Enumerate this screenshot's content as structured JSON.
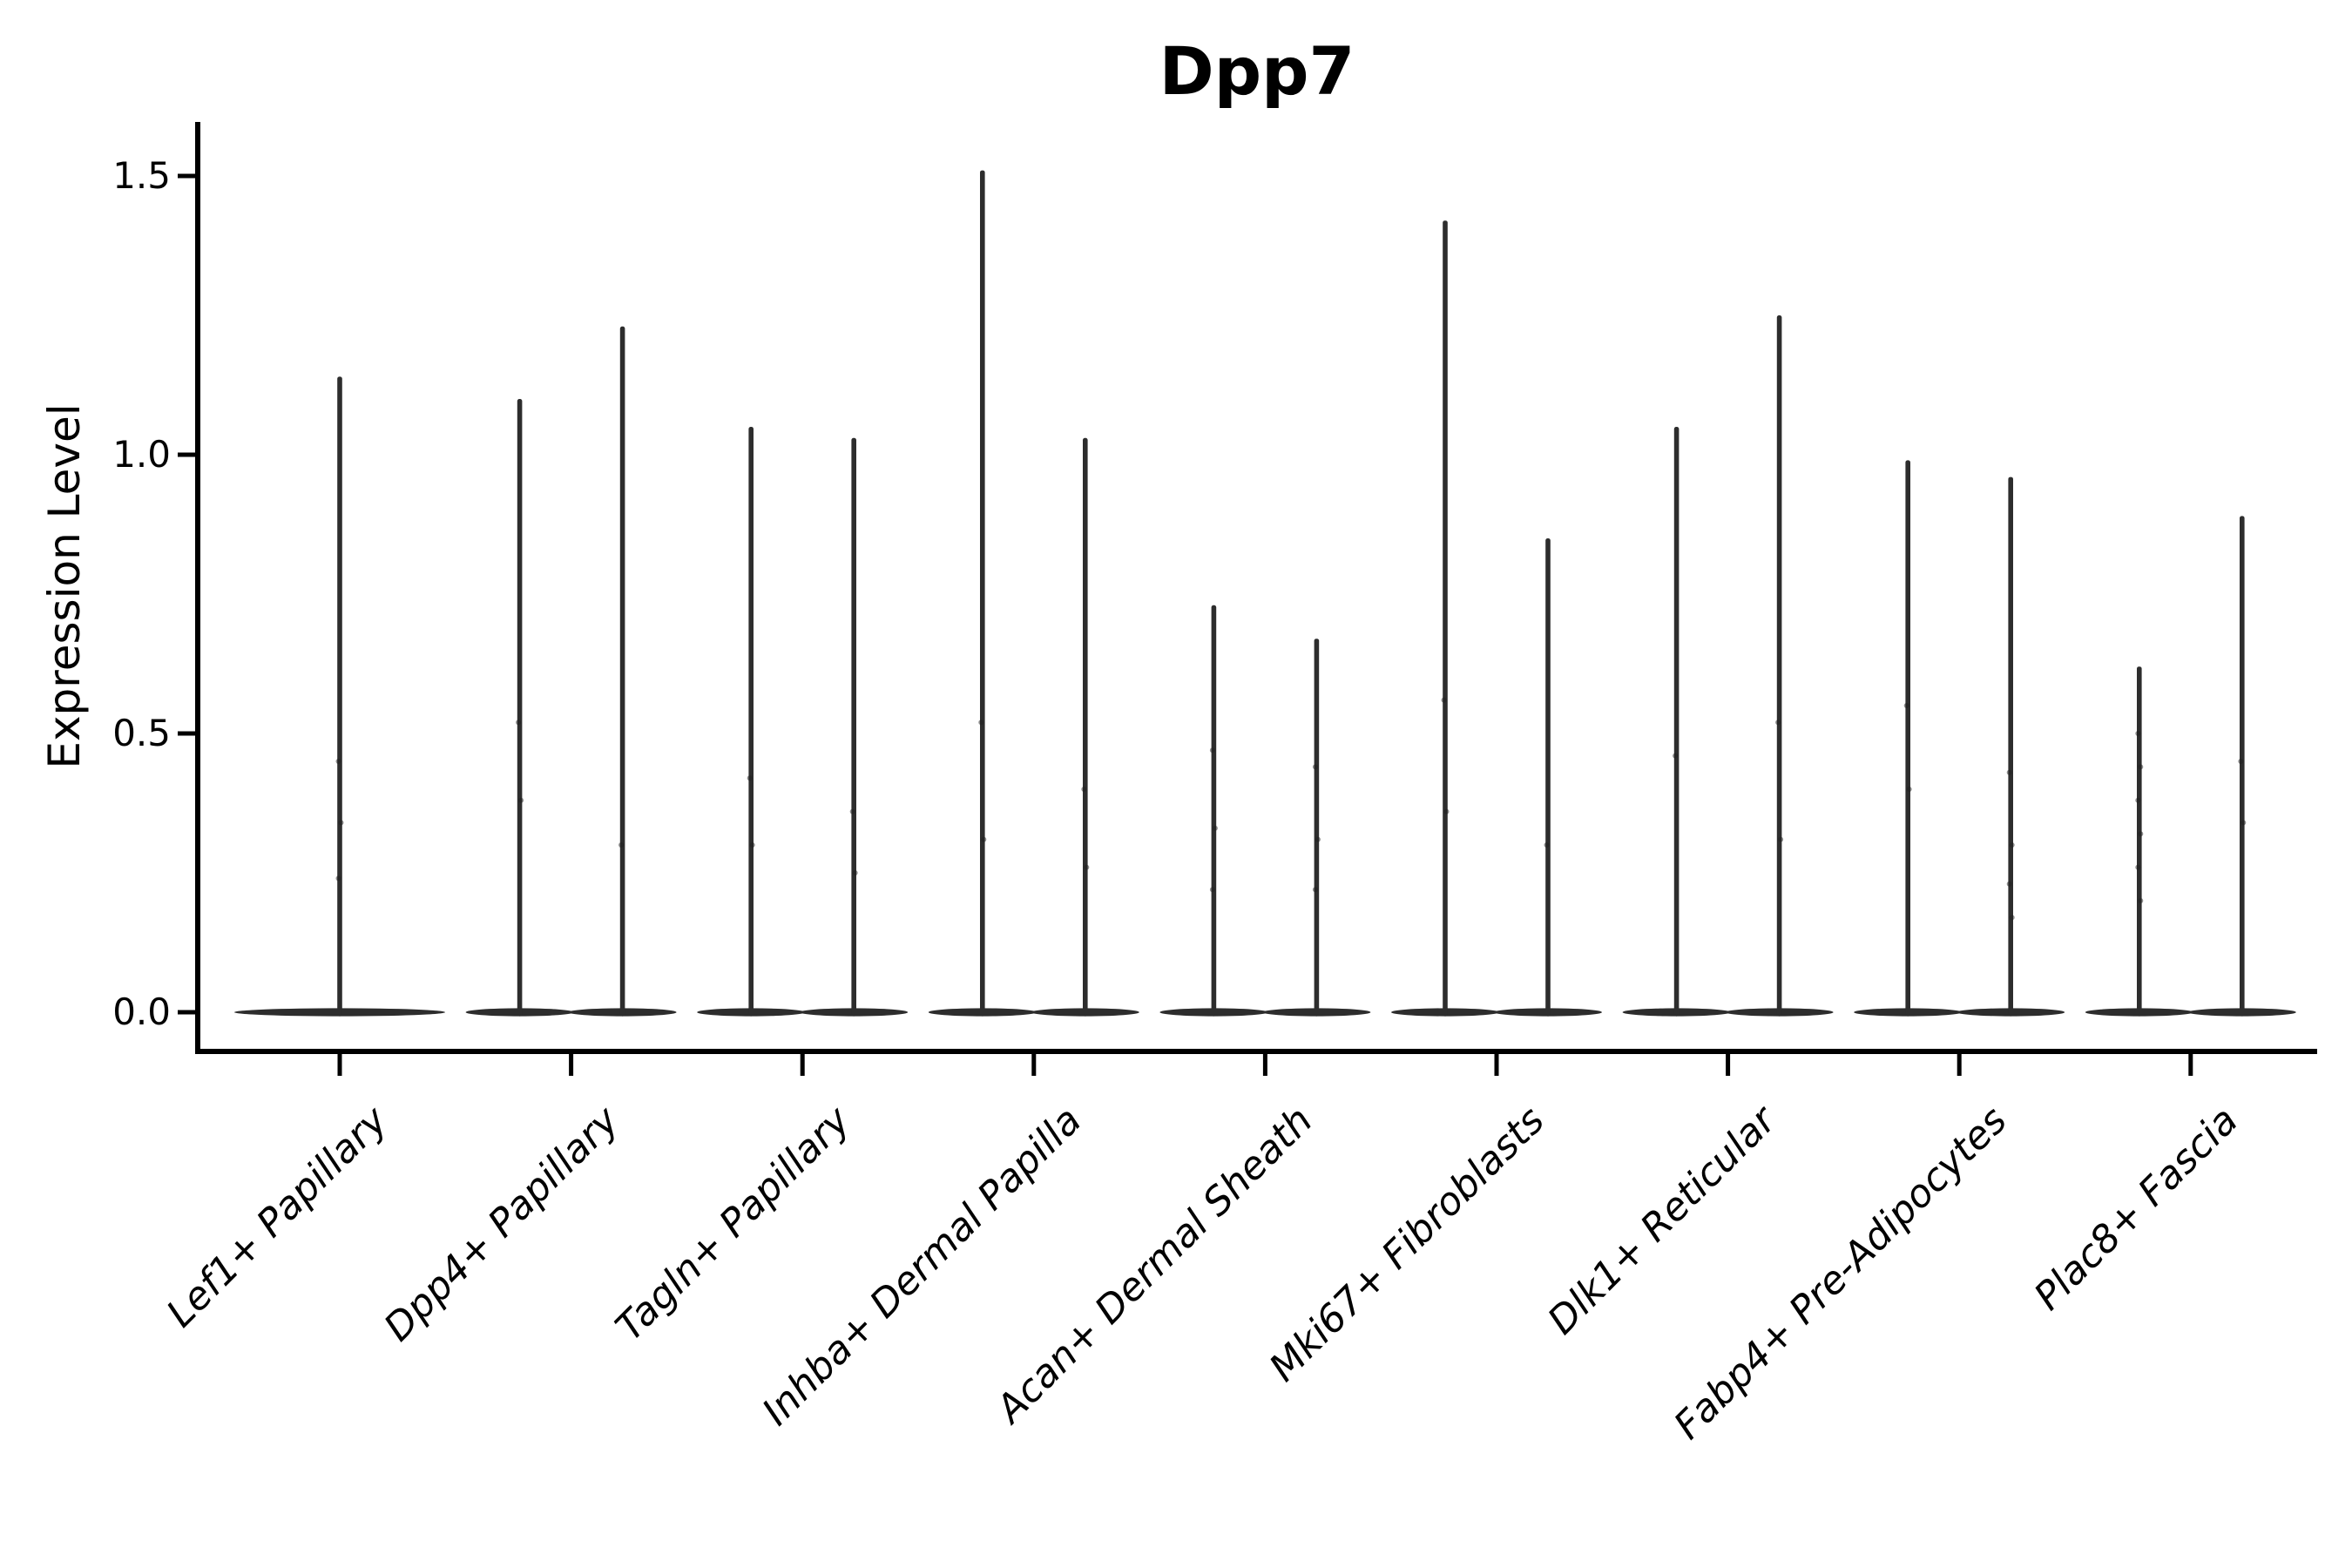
{
  "chart_data": {
    "type": "violin",
    "title": "Dpp7",
    "ylabel": "Expression Level",
    "xlabel": "",
    "ylim": [
      -0.07,
      1.6
    ],
    "yticks": [
      0.0,
      0.5,
      1.0,
      1.5
    ],
    "ytick_labels": [
      "0.0",
      "0.5",
      "1.0",
      "1.5"
    ],
    "categories": [
      "Lef1+ Papillary",
      "Dpp4+ Papillary",
      "Tagln+ Papillary",
      "Inhba+ Dermal Papilla",
      "Acan+ Dermal Sheath",
      "Mki67+ Fibroblasts",
      "Dlk1+ Reticular",
      "Fabp4+ Pre-Adipocytes",
      "Plac8+ Fascia"
    ],
    "violins": [
      {
        "category": "Lef1+ Papillary",
        "spikes": [
          {
            "offset": 0,
            "max": 1.14,
            "dots": [
              0.45,
              0.34,
              0.24
            ]
          }
        ]
      },
      {
        "category": "Dpp4+ Papillary",
        "spikes": [
          {
            "offset": -59,
            "max": 1.1,
            "dots": [
              0.52,
              0.38
            ]
          },
          {
            "offset": 59,
            "max": 1.23,
            "dots": [
              0.3
            ]
          }
        ]
      },
      {
        "category": "Tagln+ Papillary",
        "spikes": [
          {
            "offset": -59,
            "max": 1.05,
            "dots": [
              0.42,
              0.3
            ]
          },
          {
            "offset": 59,
            "max": 1.03,
            "dots": [
              0.36,
              0.25
            ]
          }
        ]
      },
      {
        "category": "Inhba+ Dermal Papilla",
        "spikes": [
          {
            "offset": -59,
            "max": 1.51,
            "dots": [
              0.52,
              0.31
            ]
          },
          {
            "offset": 59,
            "max": 1.03,
            "dots": [
              0.4,
              0.26
            ]
          }
        ]
      },
      {
        "category": "Acan+ Dermal Sheath",
        "spikes": [
          {
            "offset": -59,
            "max": 0.73,
            "dots": [
              0.47,
              0.33,
              0.22
            ]
          },
          {
            "offset": 59,
            "max": 0.67,
            "dots": [
              0.44,
              0.31,
              0.22
            ]
          }
        ]
      },
      {
        "category": "Mki67+ Fibroblasts",
        "spikes": [
          {
            "offset": -59,
            "max": 1.42,
            "dots": [
              0.56,
              0.36
            ]
          },
          {
            "offset": 59,
            "max": 0.85,
            "dots": [
              0.3
            ]
          }
        ]
      },
      {
        "category": "Dlk1+ Reticular",
        "spikes": [
          {
            "offset": -59,
            "max": 1.05,
            "dots": [
              0.46
            ]
          },
          {
            "offset": 59,
            "max": 1.25,
            "dots": [
              0.52,
              0.31
            ]
          }
        ]
      },
      {
        "category": "Fabp4+ Pre-Adipocytes",
        "spikes": [
          {
            "offset": -59,
            "max": 0.99,
            "dots": [
              0.55,
              0.4
            ]
          },
          {
            "offset": 59,
            "max": 0.96,
            "dots": [
              0.43,
              0.3,
              0.23,
              0.17
            ]
          }
        ]
      },
      {
        "category": "Plac8+ Fascia",
        "spikes": [
          {
            "offset": -59,
            "max": 0.62,
            "dots": [
              0.5,
              0.44,
              0.38,
              0.32,
              0.26,
              0.2
            ]
          },
          {
            "offset": 59,
            "max": 0.89,
            "dots": [
              0.45,
              0.34
            ]
          }
        ]
      }
    ],
    "layout_hints": {
      "grid": false,
      "legend": false,
      "spines": [
        "left",
        "bottom"
      ],
      "x_label_rotation": 45
    }
  },
  "colors": {
    "ink": "#2d2d2d",
    "dot": "#1f1f1f",
    "axis": "#000000",
    "text": "#000000",
    "background": "#ffffff"
  }
}
